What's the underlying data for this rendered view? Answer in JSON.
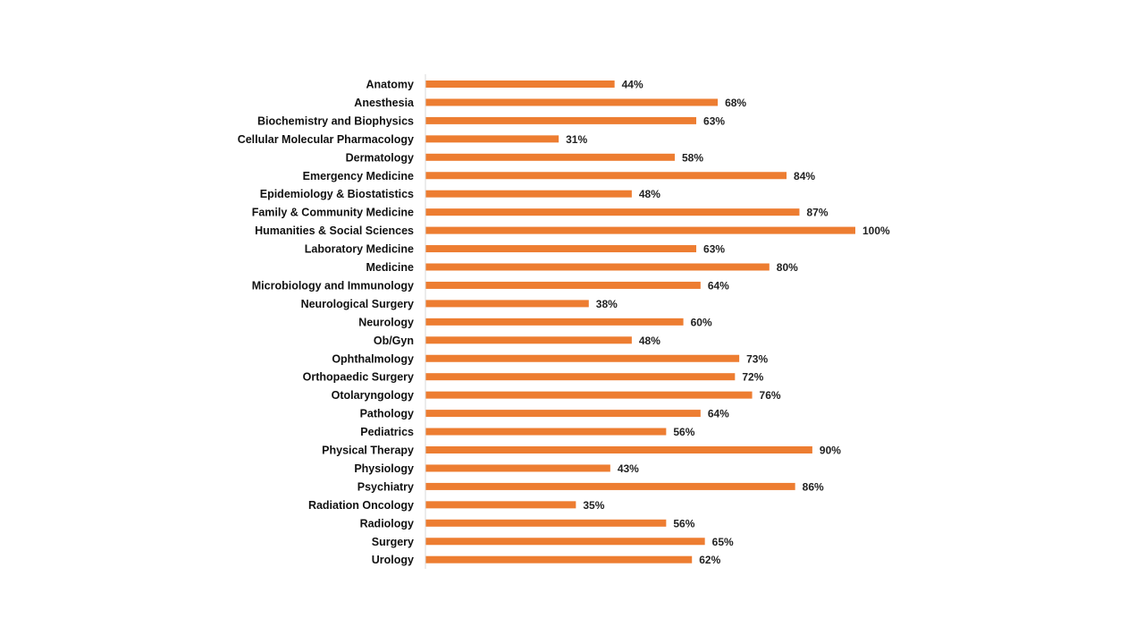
{
  "chart_data": {
    "type": "bar",
    "orientation": "horizontal",
    "title": "",
    "xlabel": "",
    "ylabel": "",
    "xlim": [
      0,
      100
    ],
    "grid": false,
    "legend": "none",
    "value_format": "percent",
    "bar_color": "#ED7D31",
    "axis_color": "#D9D9D9",
    "categories": [
      "Anatomy",
      "Anesthesia",
      "Biochemistry and Biophysics",
      "Cellular Molecular Pharmacology",
      "Dermatology",
      "Emergency Medicine",
      "Epidemiology & Biostatistics",
      "Family & Community Medicine",
      "Humanities & Social Sciences",
      "Laboratory Medicine",
      "Medicine",
      "Microbiology and Immunology",
      "Neurological Surgery",
      "Neurology",
      "Ob/Gyn",
      "Ophthalmology",
      "Orthopaedic Surgery",
      "Otolaryngology",
      "Pathology",
      "Pediatrics",
      "Physical Therapy",
      "Physiology",
      "Psychiatry",
      "Radiation Oncology",
      "Radiology",
      "Surgery",
      "Urology"
    ],
    "values": [
      44,
      68,
      63,
      31,
      58,
      84,
      48,
      87,
      100,
      63,
      80,
      64,
      38,
      60,
      48,
      73,
      72,
      76,
      64,
      56,
      90,
      43,
      86,
      35,
      56,
      65,
      62
    ],
    "labels": [
      "44%",
      "68%",
      "63%",
      "31%",
      "58%",
      "84%",
      "48%",
      "87%",
      "100%",
      "63%",
      "80%",
      "64%",
      "38%",
      "60%",
      "48%",
      "73%",
      "72%",
      "76%",
      "64%",
      "56%",
      "90%",
      "43%",
      "86%",
      "35%",
      "56%",
      "65%",
      "62%"
    ]
  }
}
